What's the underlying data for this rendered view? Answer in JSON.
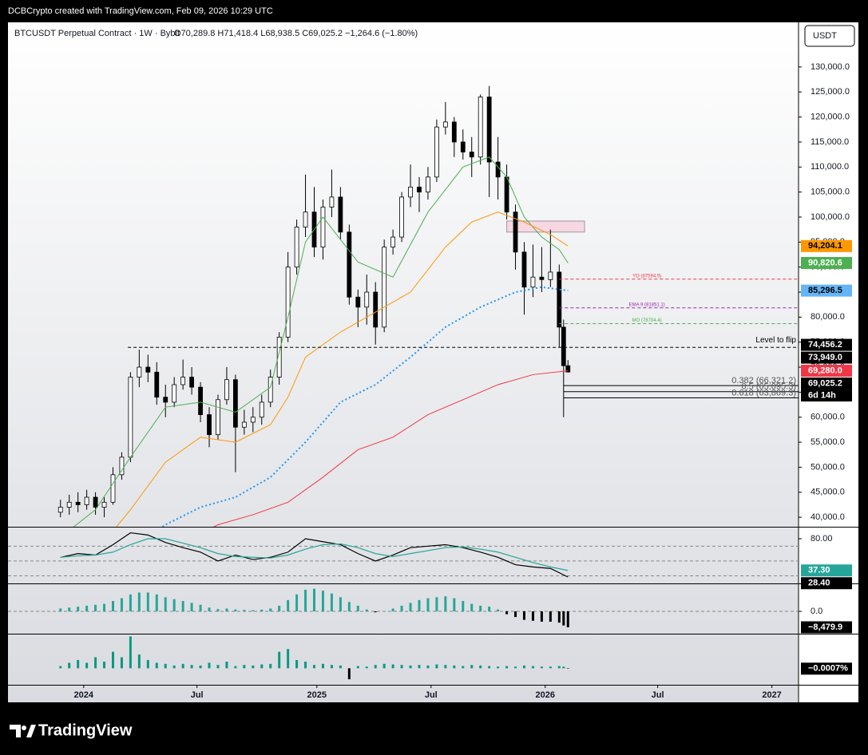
{
  "header": {
    "text": "DCBCrypto created with TradingView.com, Feb 09, 2026 10:29 UTC"
  },
  "legend": {
    "symbol": "BTCUSDT Perpetual Contract · 1W · Bybit",
    "ohlc": "O70,289.8  H71,418.4  L68,938.5  C69,025.2  −1,264.6 (−1.80%)"
  },
  "currency_button": "USDT",
  "footer": {
    "logo": "TradingView"
  },
  "chart_data": [
    {
      "type": "candlestick",
      "xlim": [
        0,
        180.7
      ],
      "xticks": [
        {
          "value": 17.3,
          "label": "2024"
        },
        {
          "value": 43.2,
          "label": "Jul"
        },
        {
          "value": 70.6,
          "label": "2025"
        },
        {
          "value": 96.7,
          "label": "Jul"
        },
        {
          "value": 122.8,
          "label": "2026"
        },
        {
          "value": 148.5,
          "label": "Jul"
        },
        {
          "value": 174.6,
          "label": "2027"
        }
      ],
      "ylim": [
        38100,
        138600
      ],
      "yticks": [
        {
          "value": 40000,
          "label": "40,000.0"
        },
        {
          "value": 45000,
          "label": "45,000.0"
        },
        {
          "value": 50000,
          "label": "50,000.0"
        },
        {
          "value": 55000,
          "label": "55,000.0"
        },
        {
          "value": 60000,
          "label": "60,000.0"
        },
        {
          "value": 65000,
          "label": "65,000.0"
        },
        {
          "value": 70000,
          "label": "70,000.0"
        },
        {
          "value": 75000,
          "label": "75,000.0"
        },
        {
          "value": 80000,
          "label": "80,000.0"
        },
        {
          "value": 85000,
          "label": "85,000.0"
        },
        {
          "value": 90000,
          "label": "90,000.0"
        },
        {
          "value": 95000,
          "label": "95,000.0"
        },
        {
          "value": 100000,
          "label": "100,000.0"
        },
        {
          "value": 105000,
          "label": "105,000.0"
        },
        {
          "value": 110000,
          "label": "110,000.0"
        },
        {
          "value": 115000,
          "label": "115,000.0"
        },
        {
          "value": 120000,
          "label": "120,000.0"
        },
        {
          "value": 125000,
          "label": "125,000.0"
        },
        {
          "value": 130000,
          "label": "130,000.0"
        }
      ],
      "up_color": "#ffffff",
      "down_color": "#000000",
      "x": [
        12,
        14,
        16,
        18,
        20,
        22,
        24,
        26,
        28,
        30,
        32,
        34,
        36,
        38,
        40,
        42,
        44,
        46,
        48,
        50,
        52,
        54,
        56,
        58,
        60,
        62,
        64,
        66,
        68,
        70,
        72,
        74,
        76,
        78,
        80,
        82,
        84,
        86,
        88,
        90,
        92,
        94,
        96,
        98,
        100,
        102,
        104,
        106,
        108,
        110,
        112,
        114,
        116,
        118,
        120,
        122,
        124,
        126,
        127,
        128
      ],
      "open": [
        41000,
        42000,
        43000,
        42500,
        44000,
        42000,
        43000,
        48500,
        52000,
        68000,
        70000,
        69000,
        64000,
        63000,
        66500,
        68000,
        66000,
        60500,
        56500,
        63500,
        67500,
        58000,
        59000,
        60000,
        63000,
        68000,
        76000,
        90000,
        98000,
        101000,
        94000,
        102000,
        104000,
        97000,
        84000,
        82000,
        85000,
        78000,
        94000,
        96000,
        104000,
        106000,
        105000,
        108000,
        118000,
        119000,
        115000,
        113000,
        112000,
        124000,
        111000,
        108000,
        101000,
        93000,
        86000,
        88000,
        87500,
        89000,
        78000,
        70289.8
      ],
      "high": [
        43500,
        44500,
        45000,
        45500,
        45000,
        44000,
        50000,
        53000,
        69000,
        73500,
        72500,
        71000,
        66500,
        68000,
        71500,
        70000,
        67000,
        62000,
        64500,
        70000,
        68500,
        61500,
        62000,
        64500,
        69500,
        77000,
        93000,
        99500,
        108500,
        106000,
        103500,
        109500,
        106000,
        98500,
        85500,
        88500,
        87000,
        95500,
        97500,
        105000,
        110500,
        108000,
        110000,
        119500,
        123000,
        120000,
        117500,
        116000,
        124500,
        126200,
        116000,
        110500,
        102500,
        95000,
        94500,
        94000,
        97500,
        90500,
        79500,
        71418.4
      ],
      "low": [
        40000,
        40500,
        41000,
        41500,
        40500,
        40000,
        42500,
        47500,
        51000,
        66000,
        67000,
        62500,
        60000,
        62000,
        65500,
        64500,
        59000,
        54000,
        55500,
        62500,
        49000,
        56500,
        57000,
        58500,
        62000,
        66500,
        75000,
        88500,
        96000,
        92000,
        91500,
        100000,
        95500,
        82500,
        78000,
        78500,
        74500,
        77000,
        92500,
        95000,
        102000,
        101000,
        103500,
        107000,
        116500,
        112000,
        111500,
        108000,
        110500,
        104000,
        103500,
        99500,
        89500,
        80500,
        84000,
        85000,
        86000,
        74000,
        60000,
        68938.5
      ],
      "close": [
        42000,
        43000,
        42500,
        44000,
        42000,
        43000,
        48500,
        52000,
        68000,
        70000,
        69000,
        64000,
        63000,
        66500,
        68000,
        66000,
        60500,
        56500,
        63500,
        67500,
        58000,
        59000,
        60000,
        63000,
        68000,
        76000,
        90000,
        98000,
        101000,
        94000,
        102000,
        104000,
        97000,
        84000,
        82000,
        85000,
        78000,
        94000,
        96000,
        104000,
        106000,
        105000,
        108000,
        118000,
        119000,
        115000,
        113000,
        112000,
        124000,
        111000,
        108000,
        101000,
        93000,
        86000,
        88000,
        87500,
        89000,
        78000,
        70289.8,
        69025.2
      ],
      "overlays": [
        {
          "color": "#4caf50",
          "style": "solid",
          "x": [
            12,
            20,
            28,
            36,
            44,
            52,
            60,
            64,
            68,
            72,
            80,
            88,
            96,
            104,
            110,
            114,
            118,
            122,
            126,
            128
          ],
          "values": [
            36000,
            41500,
            52000,
            62000,
            63000,
            61000,
            66000,
            80000,
            95000,
            100000,
            91000,
            88000,
            101000,
            110000,
            112000,
            108000,
            100000,
            96000,
            93500,
            90820.6
          ]
        },
        {
          "color": "#ff9800",
          "style": "solid",
          "x": [
            20,
            28,
            36,
            44,
            52,
            60,
            64,
            68,
            76,
            84,
            92,
            100,
            106,
            112,
            118,
            124,
            128
          ],
          "values": [
            33000,
            41500,
            51000,
            56000,
            55000,
            58500,
            64000,
            72000,
            77000,
            81000,
            85000,
            94000,
            99000,
            101000,
            99000,
            96500,
            94204.1
          ]
        },
        {
          "color": "#2196f3",
          "style": "dotted",
          "x": [
            30,
            36,
            44,
            52,
            60,
            68,
            76,
            84,
            92,
            100,
            108,
            116,
            122,
            128
          ],
          "values": [
            35000,
            38500,
            42000,
            44000,
            48000,
            55000,
            63000,
            66500,
            72000,
            78000,
            82000,
            85000,
            86000,
            85296.5
          ]
        },
        {
          "color": "#f23645",
          "style": "solid",
          "x": [
            40,
            48,
            56,
            64,
            72,
            80,
            88,
            96,
            104,
            112,
            120,
            128
          ],
          "values": [
            35000,
            38500,
            40500,
            43000,
            48000,
            53500,
            56000,
            60500,
            63500,
            66500,
            68500,
            69280
          ]
        }
      ],
      "levels": [
        {
          "label": "YO (87594.9)",
          "value": 87594.9,
          "x": 126,
          "color": "#f23645",
          "label_position": "middle"
        },
        {
          "label": "EMA 9 (81851.1)",
          "value": 81851.1,
          "x": 126,
          "color": "#9c27b0",
          "label_position": "middle"
        },
        {
          "label": "MO (78704.4)",
          "value": 78704.4,
          "x": 126,
          "color": "#4caf50",
          "label_position": "middle"
        },
        {
          "label": "Level to flip",
          "value": 73949,
          "x": 27.4,
          "color": "#000000",
          "label_position": "right"
        }
      ],
      "fib": [
        {
          "label": "0.382 (66,321.2)",
          "value": 66321.2,
          "x": 127
        },
        {
          "label": "0.5 (65,095.3)",
          "value": 65095.3,
          "x": 127
        },
        {
          "label": "0.618 (63,869.3)",
          "value": 63869.3,
          "x": 127
        }
      ],
      "box": {
        "x": [
          114,
          131.8
        ],
        "range": [
          97000,
          99200
        ],
        "color": "#f8d7e3"
      },
      "markers": [
        {
          "value": 94204.1,
          "label": "94,204.1",
          "color": "#ff9800",
          "text_color": "#000000"
        },
        {
          "value": 90820.6,
          "label": "90,820.6",
          "color": "#4caf50",
          "text_color": "#ffffff"
        },
        {
          "value": 85296.5,
          "label": "85,296.5",
          "color": "#64b5f6",
          "text_color": "#000000"
        },
        {
          "value": 74456.2,
          "label": "74,456.2",
          "color": "#000000",
          "text_color": "#ffffff"
        },
        {
          "value": 73949,
          "label": "73,949.0",
          "color": "#000000",
          "text_color": "#ffffff"
        },
        {
          "value": 69280,
          "label": "69,280.0",
          "color": "#f23645",
          "text_color": "#ffffff"
        },
        {
          "value": 69025.2,
          "label": "69,025.2",
          "color": "#000000",
          "text_color": "#ffffff",
          "countdown": "6d 14h"
        }
      ]
    },
    {
      "type": "line",
      "xlim": [
        0,
        180.7
      ],
      "ylim": [
        20.9,
        94
      ],
      "yticks": [
        {
          "value": 80,
          "label": "80.00"
        }
      ],
      "levels": [
        70,
        50,
        30
      ],
      "x": [
        12,
        16,
        20,
        24,
        28,
        32,
        36,
        40,
        44,
        48,
        52,
        56,
        60,
        64,
        68,
        72,
        76,
        80,
        84,
        88,
        92,
        96,
        100,
        104,
        108,
        112,
        116,
        120,
        124,
        128
      ],
      "series": [
        {
          "color": "#000000",
          "values": [
            55,
            60,
            58,
            72,
            88,
            85,
            75,
            68,
            62,
            50,
            58,
            52,
            55,
            62,
            80,
            76,
            72,
            60,
            50,
            58,
            68,
            70,
            72,
            68,
            62,
            55,
            45,
            42,
            40,
            28.4
          ]
        },
        {
          "color": "#26a69a",
          "values": [
            55,
            57,
            58,
            62,
            72,
            80,
            80,
            74,
            68,
            60,
            56,
            55,
            54,
            58,
            66,
            72,
            73,
            68,
            60,
            56,
            60,
            64,
            68,
            69,
            66,
            62,
            55,
            48,
            42,
            37.3
          ]
        }
      ],
      "markers": [
        {
          "value": 37.3,
          "label": "37.30",
          "color": "#26a69a",
          "text_color": "#ffffff"
        },
        {
          "value": 28.4,
          "label": "28.40",
          "color": "#000000",
          "text_color": "#ffffff"
        }
      ]
    },
    {
      "type": "bar",
      "xlim": [
        0,
        180.7
      ],
      "ylim": [
        -11450,
        14000
      ],
      "yticks": [
        {
          "value": 0,
          "label": "0.0"
        }
      ],
      "grid": true,
      "colors": {
        "positive": "#26a69a",
        "negative": "#000000"
      },
      "x": [
        12,
        14,
        16,
        18,
        20,
        22,
        24,
        26,
        28,
        30,
        32,
        34,
        36,
        38,
        40,
        42,
        44,
        46,
        48,
        50,
        52,
        54,
        56,
        58,
        60,
        62,
        64,
        66,
        68,
        70,
        72,
        74,
        76,
        78,
        80,
        82,
        84,
        86,
        88,
        90,
        92,
        94,
        96,
        98,
        100,
        102,
        104,
        106,
        108,
        110,
        112,
        114,
        116,
        118,
        120,
        122,
        124,
        126,
        127,
        128
      ],
      "values": [
        1500,
        2000,
        2500,
        3000,
        3500,
        4000,
        5500,
        7000,
        9000,
        10000,
        10000,
        9000,
        7500,
        6500,
        5500,
        4500,
        3500,
        2000,
        1200,
        1500,
        1000,
        800,
        600,
        900,
        1500,
        3000,
        6000,
        9000,
        11500,
        12000,
        11000,
        9500,
        7500,
        5000,
        3000,
        1000,
        -500,
        200,
        1500,
        3000,
        4500,
        6000,
        7000,
        7500,
        8000,
        7000,
        5500,
        4000,
        3000,
        2500,
        1000,
        -1500,
        -3000,
        -4500,
        -5000,
        -5500,
        -5500,
        -6000,
        -7500,
        -8479.9
      ],
      "markers": [
        {
          "value": -8479.9,
          "label": "−8,479.9",
          "color": "#000000",
          "text_color": "#ffffff"
        }
      ]
    },
    {
      "type": "bar",
      "xlim": [
        0,
        180.7
      ],
      "ylim": [
        -0.03,
        0.06
      ],
      "colors": {
        "positive": "#089981",
        "negative": "#000000"
      },
      "x": [
        12,
        14,
        16,
        18,
        20,
        22,
        24,
        26,
        28,
        30,
        32,
        34,
        36,
        38,
        40,
        42,
        44,
        46,
        48,
        50,
        52,
        54,
        56,
        58,
        60,
        62,
        64,
        66,
        68,
        70,
        72,
        74,
        76,
        78,
        80,
        82,
        84,
        86,
        88,
        90,
        92,
        94,
        96,
        98,
        100,
        102,
        104,
        106,
        108,
        110,
        112,
        114,
        116,
        118,
        120,
        122,
        124,
        126,
        127,
        128
      ],
      "values": [
        0.004,
        0.01,
        0.015,
        0.01,
        0.02,
        0.012,
        0.03,
        0.02,
        0.058,
        0.025,
        0.015,
        0.01,
        0.008,
        0.005,
        0.008,
        0.006,
        0.005,
        0.01,
        0.006,
        0.012,
        0.004,
        0.006,
        0.005,
        0.007,
        0.008,
        0.03,
        0.035,
        0.015,
        0.012,
        0.006,
        0.008,
        0.006,
        0.005,
        -0.02,
        0.004,
        0.003,
        0.006,
        0.008,
        0.007,
        0.006,
        0.005,
        0.006,
        0.005,
        0.007,
        0.006,
        0.005,
        0.004,
        0.006,
        0.005,
        0.004,
        0.003,
        0.004,
        0.003,
        0.005,
        0.004,
        0.003,
        0.003,
        0.004,
        0.003,
        -0.0007
      ],
      "markers": [
        {
          "value": -0.0007,
          "label": "−0.0007%",
          "color": "#000000",
          "text_color": "#ffffff"
        }
      ]
    }
  ]
}
